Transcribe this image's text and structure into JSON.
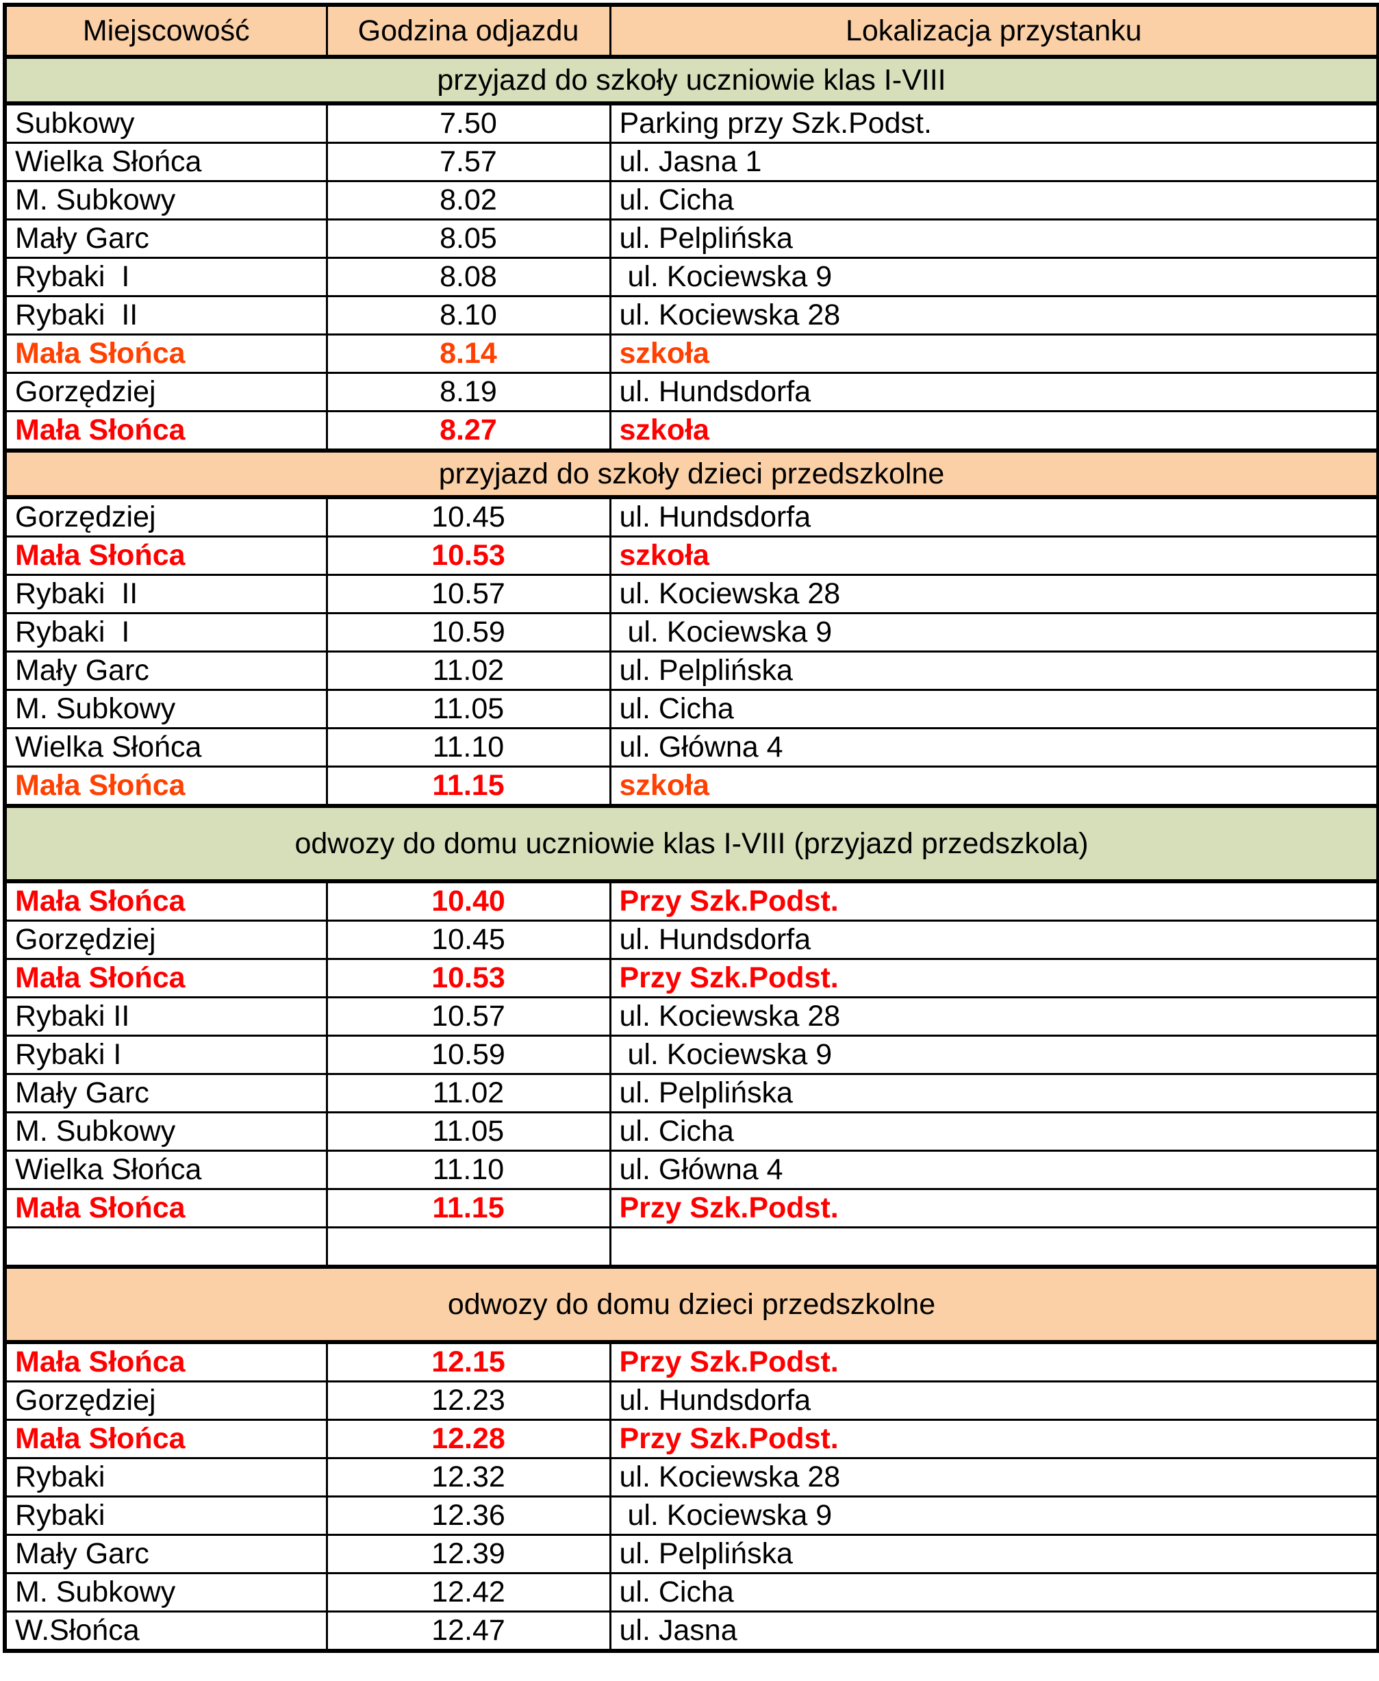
{
  "table": {
    "columns": [
      "Miejscowość",
      "Godzina odjazdu",
      "Lokalizacja przystanku"
    ],
    "colors": {
      "header_bg": "#FBD0A6",
      "band_green": "#D6DFBA",
      "band_peach": "#FBD0A6",
      "red": "#FF0000",
      "orange_red": "#FF4000",
      "border": "#000000"
    },
    "sections": [
      {
        "title": "przyjazd do szkoły uczniowie klas I-VIII",
        "band": "green",
        "tall": false,
        "rows": [
          {
            "place": "Subkowy",
            "time": "7.50",
            "stop": "Parking przy Szk.Podst."
          },
          {
            "place": "Wielka Słońca",
            "time": "7.57",
            "stop": "ul. Jasna 1"
          },
          {
            "place": "M. Subkowy",
            "time": "8.02",
            "stop": "ul. Cicha"
          },
          {
            "place": "Mały Garc",
            "time": "8.05",
            "stop": "ul. Pelplińska"
          },
          {
            "place": "Rybaki  I",
            "time": "8.08",
            "stop": " ul. Kociewska 9"
          },
          {
            "place": "Rybaki  II",
            "time": "8.10",
            "stop": "ul. Kociewska 28"
          },
          {
            "place": "Mała Słońca",
            "time": "8.14",
            "stop": "szkoła",
            "c": "orange"
          },
          {
            "place": "Gorzędziej",
            "time": "8.19",
            "stop": "ul. Hundsdorfa"
          },
          {
            "place": "Mała Słońca",
            "time": "8.27",
            "stop": "szkoła",
            "c": "red"
          }
        ]
      },
      {
        "title": "przyjazd do szkoły dzieci przedszkolne",
        "band": "peach",
        "tall": false,
        "rows": [
          {
            "place": "Gorzędziej",
            "time": "10.45",
            "stop": "ul. Hundsdorfa"
          },
          {
            "place": "Mała Słońca",
            "time": "10.53",
            "stop": "szkoła",
            "c": "red"
          },
          {
            "place": "Rybaki  II",
            "time": "10.57",
            "stop": "ul. Kociewska 28"
          },
          {
            "place": "Rybaki  I",
            "time": "10.59",
            "stop": " ul. Kociewska 9"
          },
          {
            "place": "Mały Garc",
            "time": "11.02",
            "stop": "ul. Pelplińska"
          },
          {
            "place": "M. Subkowy",
            "time": "11.05",
            "stop": "ul. Cicha"
          },
          {
            "place": "Wielka Słońca",
            "time": "11.10",
            "stop": "ul. Główna 4"
          },
          {
            "place": "Mała Słońca",
            "time": "11.15",
            "stop": "szkoła",
            "c": "orange",
            "tc": "red"
          }
        ]
      },
      {
        "title": "odwozy do domu uczniowie klas I-VIII (przyjazd przedszkola)",
        "band": "green",
        "tall": true,
        "rows": [
          {
            "place": "Mała Słońca",
            "time": "10.40",
            "stop": "Przy Szk.Podst.",
            "c": "red"
          },
          {
            "place": "Gorzędziej",
            "time": "10.45",
            "stop": "ul. Hundsdorfa"
          },
          {
            "place": "Mała Słońca",
            "time": "10.53",
            "stop": "Przy Szk.Podst.",
            "c": "red"
          },
          {
            "place": "Rybaki II",
            "time": "10.57",
            "stop": "ul. Kociewska 28"
          },
          {
            "place": "Rybaki I",
            "time": "10.59",
            "stop": " ul. Kociewska 9"
          },
          {
            "place": "Mały Garc",
            "time": "11.02",
            "stop": "ul. Pelplińska"
          },
          {
            "place": "M. Subkowy",
            "time": "11.05",
            "stop": "ul. Cicha"
          },
          {
            "place": "Wielka Słońca",
            "time": "11.10",
            "stop": "ul. Główna 4"
          },
          {
            "place": "Mała Słońca",
            "time": "11.15",
            "stop": "Przy Szk.Podst.",
            "c": "red"
          },
          {
            "place": "",
            "time": "",
            "stop": "",
            "empty": true
          }
        ]
      },
      {
        "title": "odwozy do domu dzieci przedszkolne",
        "band": "peach",
        "tall": true,
        "rows": [
          {
            "place": "Mała Słońca",
            "time": "12.15",
            "stop": "Przy Szk.Podst.",
            "c": "red"
          },
          {
            "place": "Gorzędziej",
            "time": "12.23",
            "stop": "ul. Hundsdorfa"
          },
          {
            "place": "Mała Słońca",
            "time": "12.28",
            "stop": "Przy Szk.Podst.",
            "c": "red"
          },
          {
            "place": "Rybaki",
            "time": "12.32",
            "stop": "ul. Kociewska 28"
          },
          {
            "place": "Rybaki",
            "time": "12.36",
            "stop": " ul. Kociewska 9"
          },
          {
            "place": "Mały Garc",
            "time": "12.39",
            "stop": "ul. Pelplińska"
          },
          {
            "place": "M. Subkowy",
            "time": "12.42",
            "stop": "ul. Cicha"
          },
          {
            "place": "W.Słońca",
            "time": "12.47",
            "stop": "ul. Jasna"
          }
        ]
      }
    ]
  }
}
